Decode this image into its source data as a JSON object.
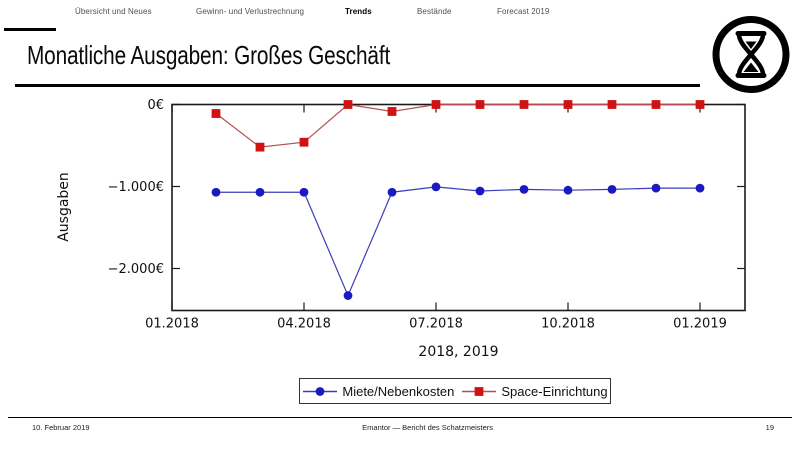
{
  "nav": {
    "items": [
      {
        "label": "Übersicht und Neues",
        "active": false
      },
      {
        "label": "Gewinn- und Verlustrechnung",
        "active": false
      },
      {
        "label": "Trends",
        "active": true
      },
      {
        "label": "Bestände",
        "active": false
      },
      {
        "label": "Forecast 2019",
        "active": false
      }
    ]
  },
  "slide": {
    "title": "Monatliche Ausgaben: Großes Geschäft"
  },
  "logo": {
    "icon": "hourglass-in-circle"
  },
  "chart_data": {
    "type": "line",
    "title": "",
    "xlabel": "2018, 2019",
    "ylabel": "Ausgaben",
    "grid": false,
    "legend_position": "below",
    "xlim_months": [
      0,
      13
    ],
    "ylim": [
      -2510,
      0
    ],
    "start_month": 1,
    "x": [
      "02.2018",
      "03.2018",
      "04.2018",
      "05.2018",
      "06.2018",
      "07.2018",
      "08.2018",
      "09.2018",
      "10.2018",
      "11.2018",
      "12.2018",
      "01.2019"
    ],
    "x_ticks": [
      {
        "label": "01.2018",
        "month": 0
      },
      {
        "label": "04.2018",
        "month": 3
      },
      {
        "label": "07.2018",
        "month": 6
      },
      {
        "label": "10.2018",
        "month": 9
      },
      {
        "label": "01.2019",
        "month": 12
      }
    ],
    "y_ticks": [
      {
        "label": "0€",
        "value": 0
      },
      {
        "label": "−1.000€",
        "value": -1000
      },
      {
        "label": "−2.000€",
        "value": -2000
      }
    ],
    "series": [
      {
        "name": "Miete/Nebenkosten",
        "marker": "circle",
        "color": "#1a1ac0",
        "line_color": "#3d3dbb",
        "values": [
          -1070,
          -1070,
          -1070,
          -2330,
          -1070,
          -1005,
          -1055,
          -1035,
          -1045,
          -1035,
          -1020,
          -1020
        ]
      },
      {
        "name": "Space-Einrichtung",
        "marker": "square",
        "color": "#cf1212",
        "line_color": "#b65050",
        "values": [
          -110,
          -520,
          -460,
          0,
          -85,
          0,
          0,
          0,
          0,
          0,
          0,
          0
        ]
      }
    ]
  },
  "footer": {
    "date": "10. Februar 2019",
    "center": "Emantor — Bericht des Schatzmeisters",
    "page": "19"
  }
}
